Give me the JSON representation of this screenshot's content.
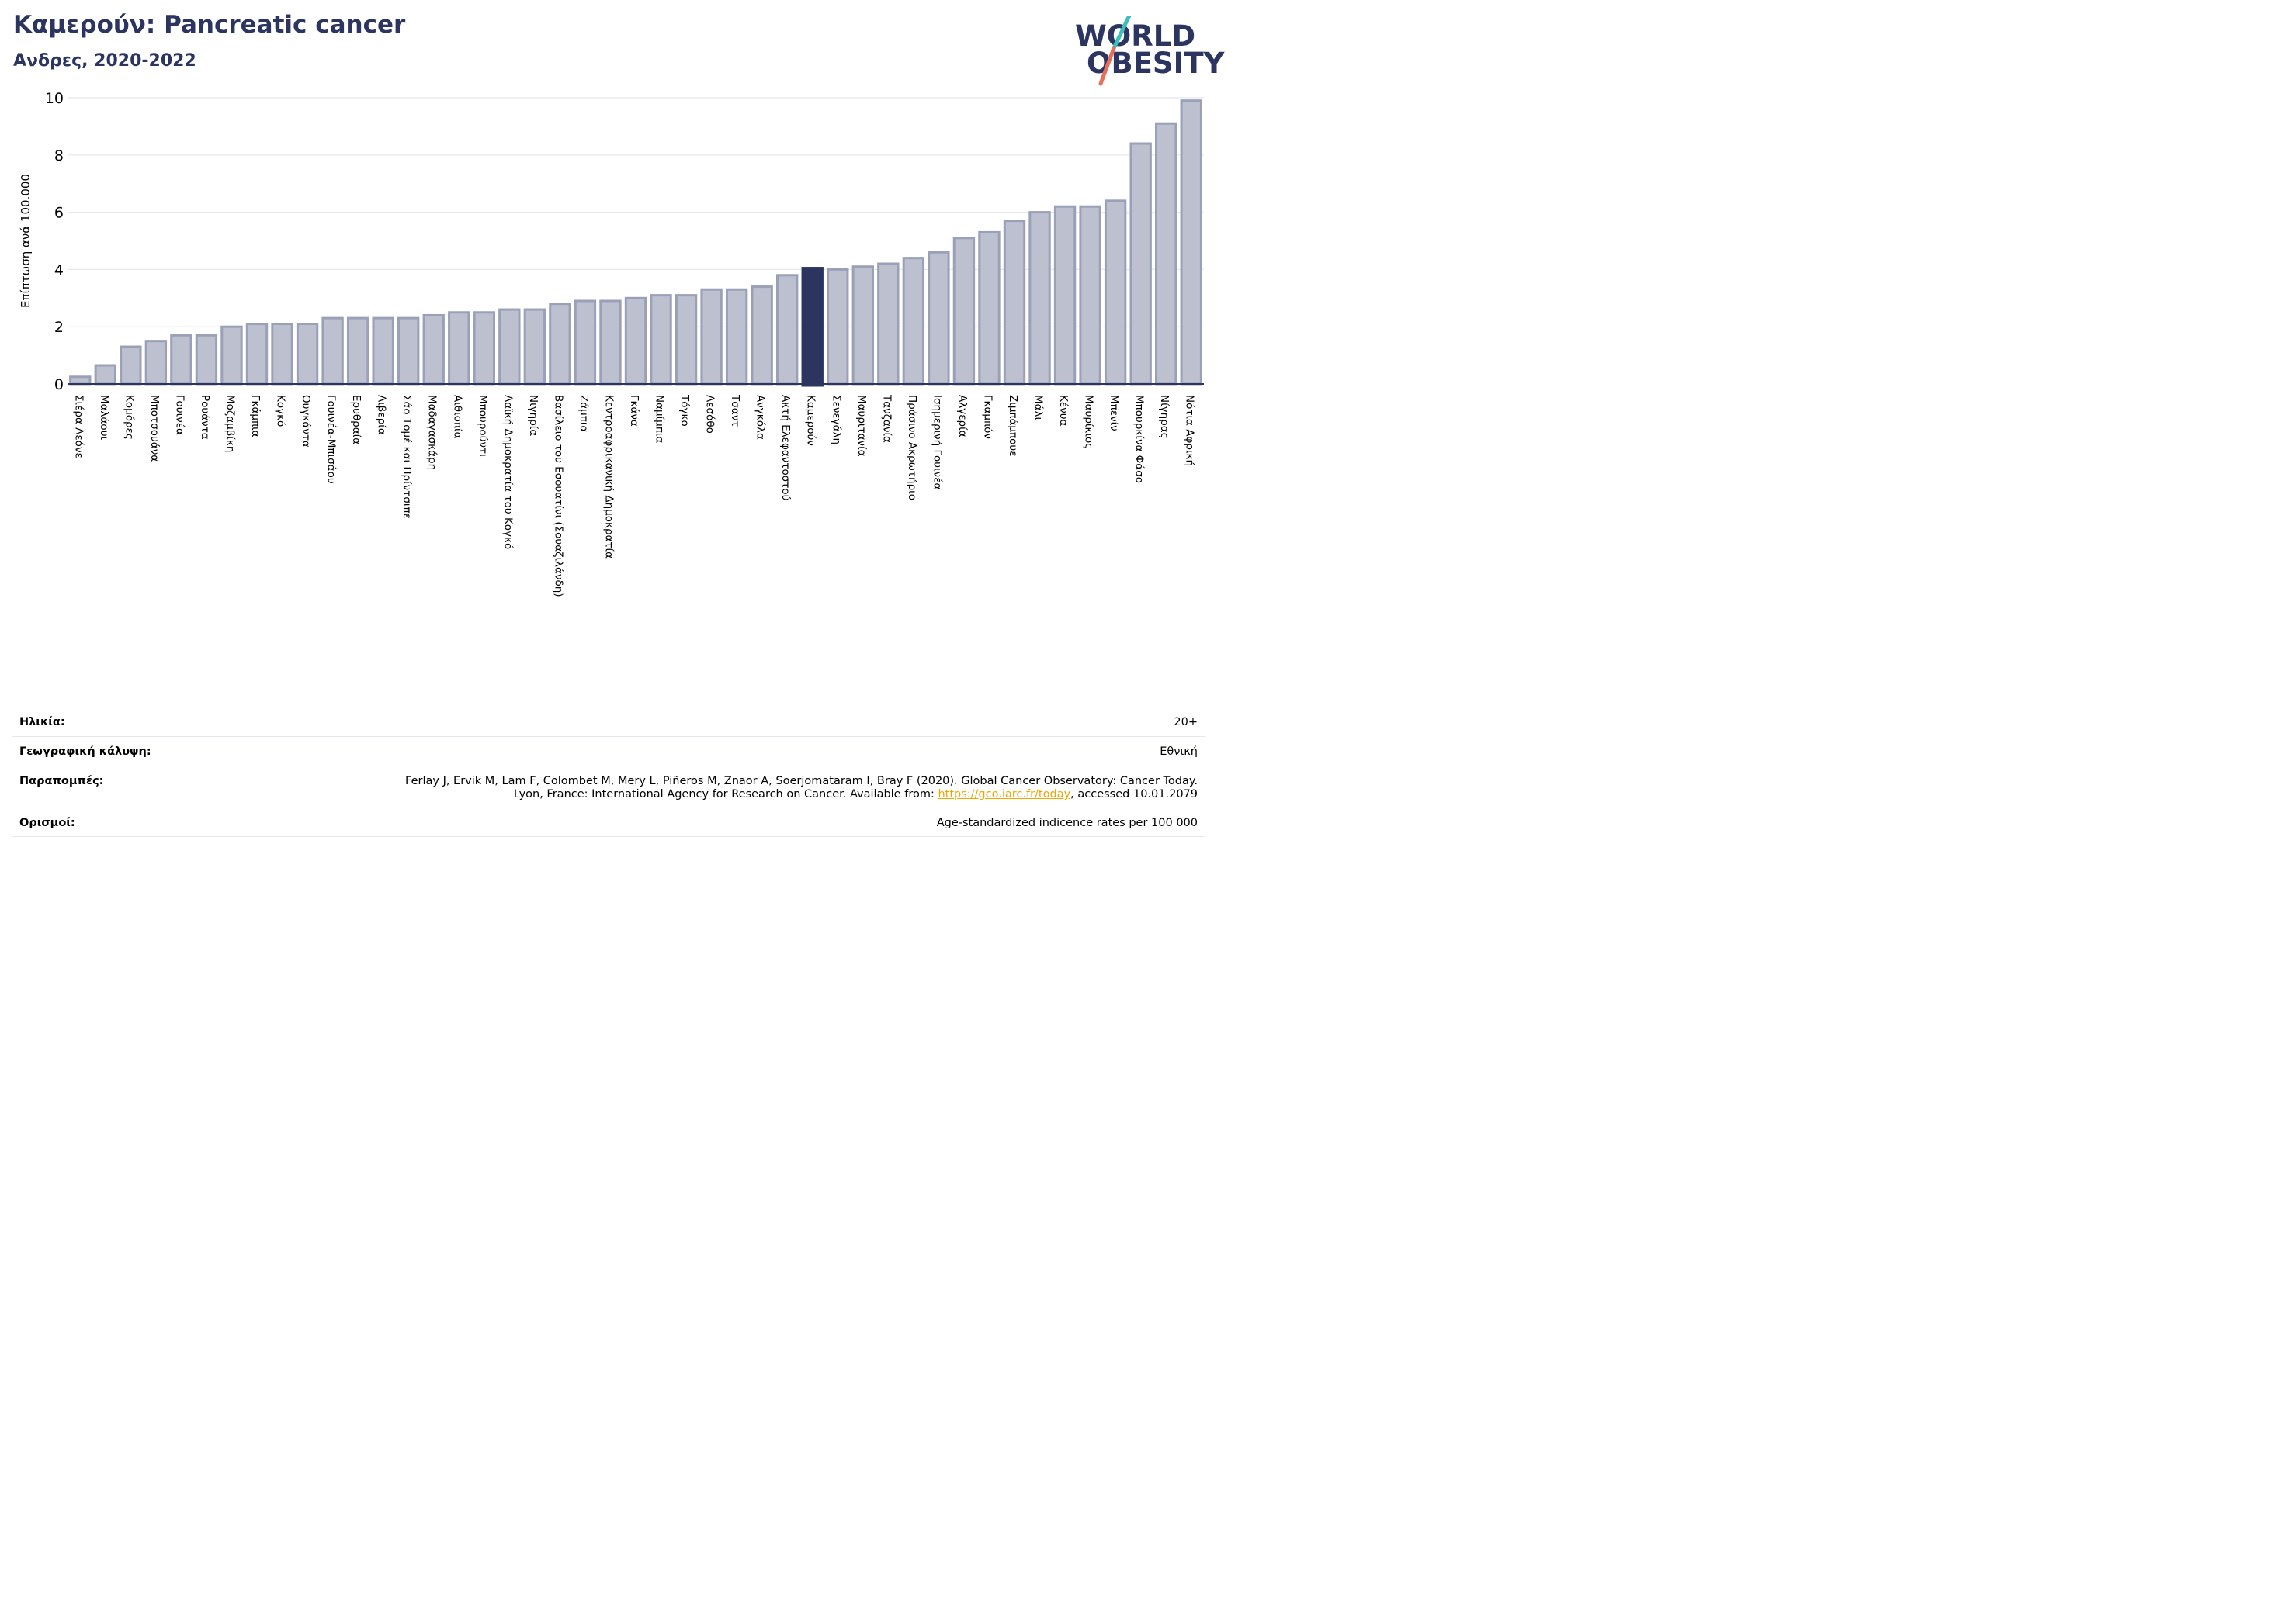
{
  "header": {
    "title": "Καμερούν: Pancreatic cancer",
    "subtitle": "Ανδρες, 2020-2022"
  },
  "logo": {
    "line1": "WORLD",
    "line2": "OBESITY",
    "colors": {
      "text": "#2b3560",
      "slash_top": "#3cbfbf",
      "slash_bottom": "#e8705a"
    }
  },
  "chart_data": {
    "type": "bar",
    "ylabel": "Επίπτωση ανά 100.000",
    "ylim": [
      0,
      10
    ],
    "yticks": [
      "0",
      "2",
      "4",
      "6",
      "8",
      "10"
    ],
    "grid": true,
    "highlight": "Καμερούν",
    "colors": {
      "bar": "#bcc0cf",
      "bar_edge": "#9aa0b8",
      "highlight": "#2b3560",
      "grid": "#e6e8ee",
      "axis": "#2b3560"
    },
    "categories": [
      "Σιέρα Λεόνε",
      "Μαλάουι",
      "Κομόρες",
      "Μποτσουάνα",
      "Γουινέα",
      "Ρουάντα",
      "Μοζαμβίκη",
      "Γκάμπια",
      "Κογκό",
      "Ουγκάντα",
      "Γουινέα-Μπισάου",
      "Ερυθραία",
      "Λιβερία",
      "Σάο Τομέ και Πρίντσιπε",
      "Μαδαγασκάρη",
      "Αιθιοπία",
      "Μπουρούντι",
      "Λαϊκή Δημοκρατία του Κογκό",
      "Νιγηρία",
      "Βασίλειο του Εσουατίνι (Σουαζιλάνδη)",
      "Ζάμπια",
      "Κεντροαφρικανική Δημοκρατία",
      "Γκάνα",
      "Ναμίμπια",
      "Τόγκο",
      "Λεσόθο",
      "Τσαντ",
      "Ανγκόλα",
      "Ακτή Ελεφαντοστού",
      "Καμερούν",
      "Σενεγάλη",
      "Μαυριτανία",
      "Τανζανία",
      "Πράσινο Ακρωτήριο",
      "Ισημερινή Γουινέα",
      "Αλγερία",
      "Γκαμπόν",
      "Ζιμπάμπουε",
      "Μάλι",
      "Κένυα",
      "Μαυρίκιος",
      "Μπενίν",
      "Μπουρκίνα Φάσο",
      "Νίγηρας",
      "Νότια Αφρική"
    ],
    "values": [
      0.25,
      0.65,
      1.3,
      1.5,
      1.7,
      1.7,
      2.0,
      2.1,
      2.1,
      2.1,
      2.3,
      2.3,
      2.3,
      2.3,
      2.4,
      2.5,
      2.5,
      2.6,
      2.6,
      2.8,
      2.9,
      2.9,
      3.0,
      3.1,
      3.1,
      3.3,
      3.3,
      3.4,
      3.8,
      4.05,
      4.0,
      4.1,
      4.2,
      4.4,
      4.6,
      5.1,
      5.3,
      5.7,
      6.0,
      6.2,
      6.2,
      6.4,
      8.4,
      9.1,
      9.9
    ]
  },
  "info": {
    "age": {
      "label": "Ηλικία:",
      "value": "20+"
    },
    "coverage": {
      "label": "Γεωγραφική κάλυψη:",
      "value": "Εθνική"
    },
    "references": {
      "label": "Παραπομπές:",
      "line1": "Ferlay J, Ervik M, Lam F, Colombet M, Mery L, Piñeros M, Znaor A, Soerjomataram I, Bray F (2020). Global Cancer Observatory: Cancer Today.",
      "line2_prefix": "Lyon, France: International Agency for Research on Cancer. Available from: ",
      "link": "https://gco.iarc.fr/today",
      "line2_suffix": ", accessed 10.01.2079"
    },
    "definitions": {
      "label": "Ορισμοί:",
      "value": "Age-standardized indicence rates per 100 000"
    }
  }
}
